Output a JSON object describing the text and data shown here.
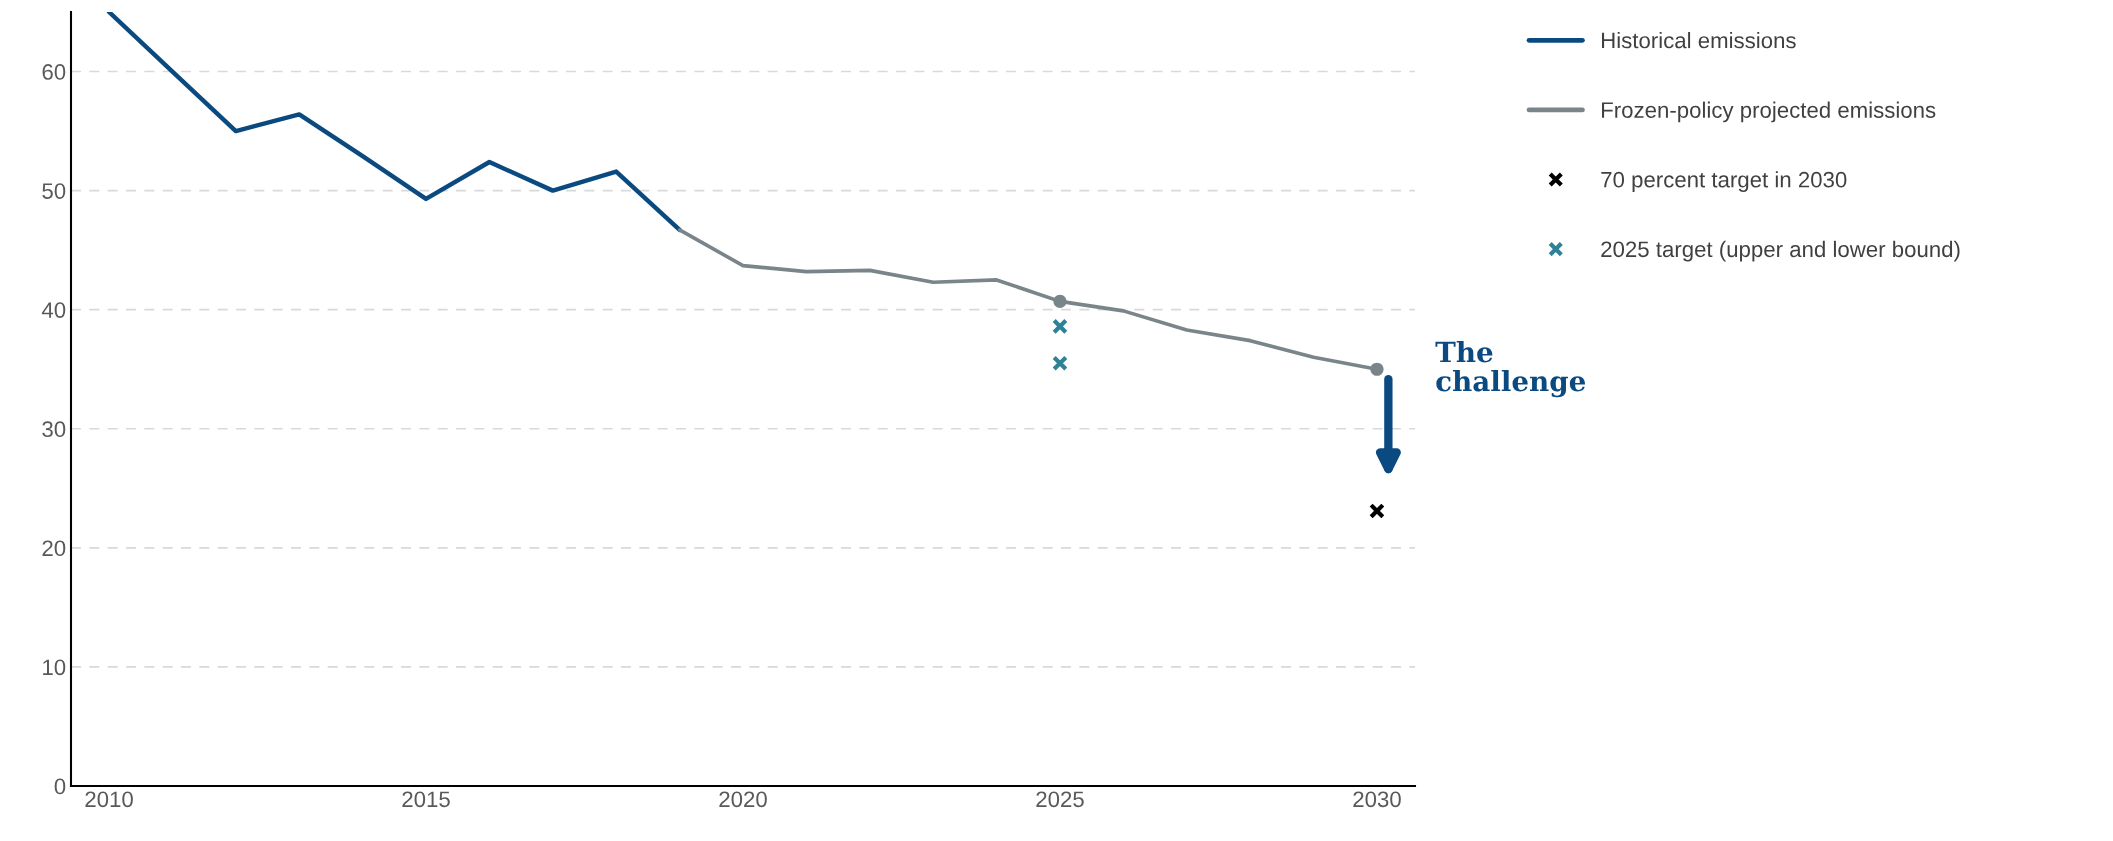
{
  "chart_data": {
    "type": "line",
    "x": [
      2010,
      2011,
      2012,
      2013,
      2014,
      2015,
      2016,
      2017,
      2018,
      2019
    ],
    "series": [
      {
        "name": "Historical emissions",
        "color": "#0b4a80",
        "marker": "none",
        "values": [
          65,
          60,
          55.0,
          56.4,
          52.9,
          49.3,
          52.4,
          50.0,
          51.6,
          46.7
        ]
      },
      {
        "name": "Frozen-policy projected emissions",
        "color": "#7a8589",
        "marker": "none",
        "x": [
          2019,
          2020,
          2021,
          2022,
          2023,
          2024,
          2025,
          2026,
          2027,
          2028,
          2029,
          2030
        ],
        "values": [
          46.7,
          43.7,
          43.2,
          43.3,
          42.3,
          42.5,
          40.7,
          39.9,
          38.3,
          37.4,
          36.0,
          35.0
        ]
      },
      {
        "color": "#7a8589",
        "type": "scatter",
        "marker": "circle",
        "x": [
          2025,
          2030
        ],
        "values": [
          40.7,
          35.0
        ]
      },
      {
        "name": "70 percent target in 2030",
        "color": "#000000",
        "type": "scatter",
        "marker": "cross",
        "x": [
          2030
        ],
        "values": [
          23.1
        ]
      },
      {
        "name": "2025 target (upper and lower bound)",
        "color": "#2e8196",
        "type": "scatter",
        "marker": "cross",
        "x": [
          2025,
          2025
        ],
        "values": [
          38.6,
          35.5
        ]
      }
    ],
    "annotations": [
      "The challenge"
    ],
    "xlim": [
      2009.4,
      2030.6
    ],
    "xticks": [
      2010,
      2015,
      2020,
      2025,
      2030
    ],
    "ylim": [
      0,
      65
    ],
    "yticks": [
      0,
      10,
      20,
      30,
      40,
      50,
      60
    ],
    "grid": "y",
    "legend": "top right"
  }
}
